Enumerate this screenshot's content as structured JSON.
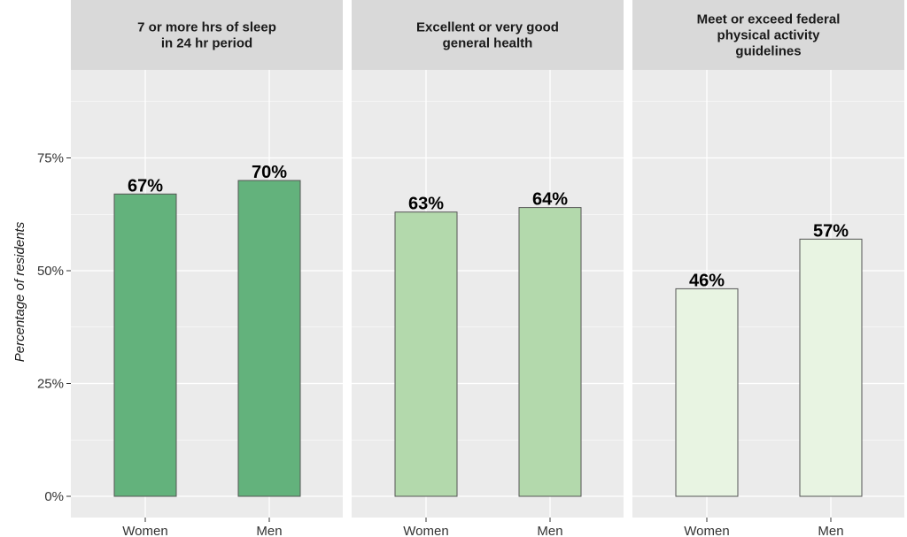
{
  "chart_data": {
    "type": "bar",
    "ylabel": "Percentage of residents",
    "ylim": [
      0,
      95
    ],
    "y_ticks": [
      {
        "value": 0,
        "label": "0%"
      },
      {
        "value": 25,
        "label": "25%"
      },
      {
        "value": 50,
        "label": "50%"
      },
      {
        "value": 75,
        "label": "75%"
      }
    ],
    "grid": true,
    "categories": [
      "Women",
      "Men"
    ],
    "panels": [
      {
        "title_lines": [
          "7 or more hrs of sleep",
          "in 24 hr period"
        ],
        "color": "#63b27c",
        "values": [
          67,
          70
        ],
        "labels": [
          "67%",
          "70%"
        ]
      },
      {
        "title_lines": [
          "Excellent or very good",
          "general health"
        ],
        "color": "#b3d9ac",
        "values": [
          63,
          64
        ],
        "labels": [
          "63%",
          "64%"
        ]
      },
      {
        "title_lines": [
          "Meet or exceed federal",
          "physical activity",
          "guidelines"
        ],
        "color": "#e8f4e2",
        "values": [
          46,
          57
        ],
        "labels": [
          "46%",
          "57%"
        ]
      }
    ],
    "colors": {
      "panel_background": "#ebebeb",
      "strip_background": "#d9d9d9",
      "grid": "#ffffff",
      "bar_border": "#555555"
    }
  }
}
